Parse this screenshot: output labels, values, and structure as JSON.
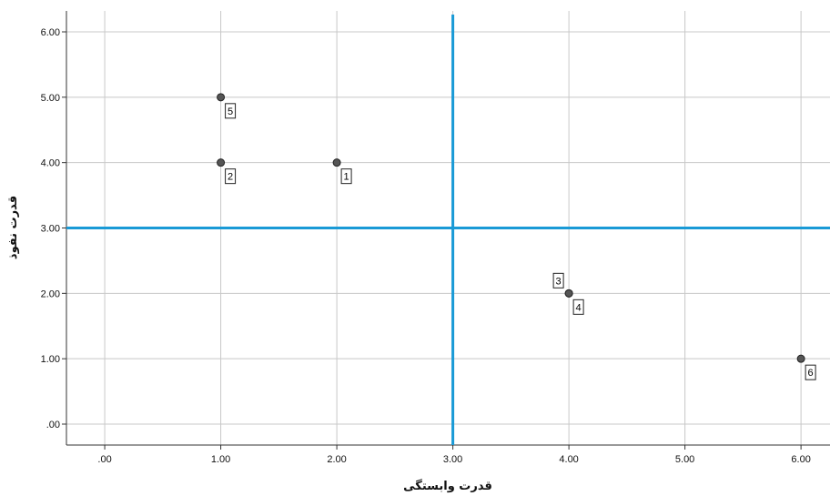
{
  "chart_data": {
    "type": "scatter",
    "xlabel": "قدرت وابستگی",
    "ylabel": "قدرت نفوذ",
    "xlim": [
      -0.33,
      6.25
    ],
    "ylim": [
      -0.32,
      6.32
    ],
    "x_ticks": [
      ".00",
      "1.00",
      "2.00",
      "3.00",
      "4.00",
      "5.00",
      "6.00"
    ],
    "y_ticks": [
      ".00",
      "1.00",
      "2.00",
      "3.00",
      "4.00",
      "5.00",
      "6.00"
    ],
    "grid": true,
    "points": [
      {
        "label": "1",
        "x": 2,
        "y": 4
      },
      {
        "label": "2",
        "x": 1,
        "y": 4
      },
      {
        "label": "3",
        "x": 4,
        "y": 2
      },
      {
        "label": "4",
        "x": 4,
        "y": 2
      },
      {
        "label": "5",
        "x": 1,
        "y": 5
      },
      {
        "label": "6",
        "x": 6,
        "y": 1
      }
    ],
    "reference_lines": {
      "x": 3,
      "y": 3
    },
    "colors": {
      "reference_line": "#1a9ad6",
      "point_fill": "#555555",
      "grid": "#c8c8c8"
    }
  }
}
